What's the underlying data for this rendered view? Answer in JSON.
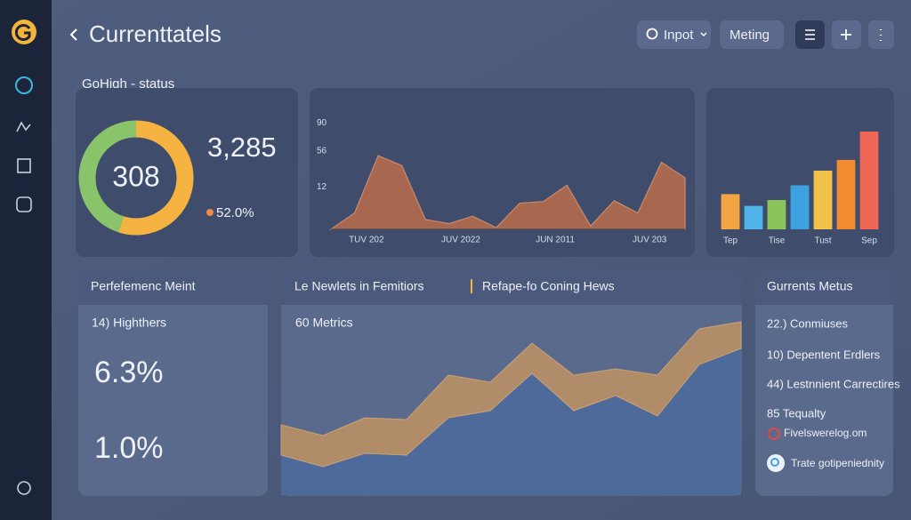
{
  "header": {
    "title": "Currenttatels",
    "buttons": [
      "Inpot",
      "Meting"
    ]
  },
  "status_label": "GoHigh - status",
  "summary_card": {
    "total": "3,285",
    "change": "52.0%"
  },
  "performance": {
    "title": "Perfefemenc Meint",
    "subtitle": "14) Highthers",
    "values": [
      "6.3%",
      "1.0%"
    ]
  },
  "news": {
    "tabs": [
      "Le Newlets in Femitiors",
      "Refape-fo Coning Hews"
    ]
  },
  "metrics": {
    "title": "Gurrents Metus",
    "items": [
      "22.) Conmiuses",
      "10) Depentent Erdlers",
      "44) Lestnnient Carrectires",
      "85  Tequalty",
      "Fivelswerelog.om",
      "Trate gotipeniednity"
    ]
  },
  "chart_data": [
    {
      "type": "pie",
      "center_label": "308",
      "values": [
        55,
        45
      ],
      "colors": [
        "#f5b342",
        "#8ac46a"
      ]
    },
    {
      "type": "area",
      "x": [
        0,
        1,
        2,
        3,
        4,
        5,
        6,
        7,
        8,
        9,
        10,
        11,
        12,
        13,
        14,
        15
      ],
      "values": [
        -40,
        -20,
        50,
        38,
        -28,
        -33,
        -24,
        -38,
        -8,
        -6,
        14,
        -36,
        -5,
        -20,
        42,
        23
      ],
      "color": "#a8674f",
      "xlim": [
        0,
        15
      ],
      "ylim": [
        -40,
        110
      ],
      "yticks": [
        12,
        56,
        90
      ],
      "xticks": [
        {
          "value": 1.5,
          "label": "TUV 202"
        },
        {
          "value": 5.5,
          "label": "JUV 2022"
        },
        {
          "value": 9.5,
          "label": "JUN 2011"
        },
        {
          "value": 13.5,
          "label": "JUV 203"
        }
      ]
    },
    {
      "type": "bar",
      "categories": [
        "Tep",
        null,
        "Tise",
        null,
        "Tust",
        null,
        "Sep"
      ],
      "values": [
        36,
        24,
        30,
        45,
        60,
        71,
        100
      ],
      "colors": [
        "#f4a543",
        "#4fb3e8",
        "#8bc45a",
        "#3da3e0",
        "#f2c14a",
        "#f28a30",
        "#ef6654"
      ],
      "ylim": [
        0,
        100
      ]
    },
    {
      "type": "stacked_area",
      "title": "60 Metrics",
      "x": [
        0,
        1,
        2,
        3,
        4,
        5,
        6,
        7,
        8,
        9,
        10,
        11
      ],
      "xlim": [
        0,
        11
      ],
      "ylim": [
        0,
        250
      ],
      "series": [
        {
          "color": "#4e6a9a",
          "values": [
            45,
            32,
            47,
            45,
            87,
            95,
            137,
            95,
            112,
            89,
            147,
            165
          ]
        },
        {
          "color": "#b08c68",
          "values": [
            34,
            35,
            40,
            40,
            48,
            32,
            34,
            40,
            30,
            46,
            40,
            30
          ]
        }
      ]
    }
  ]
}
